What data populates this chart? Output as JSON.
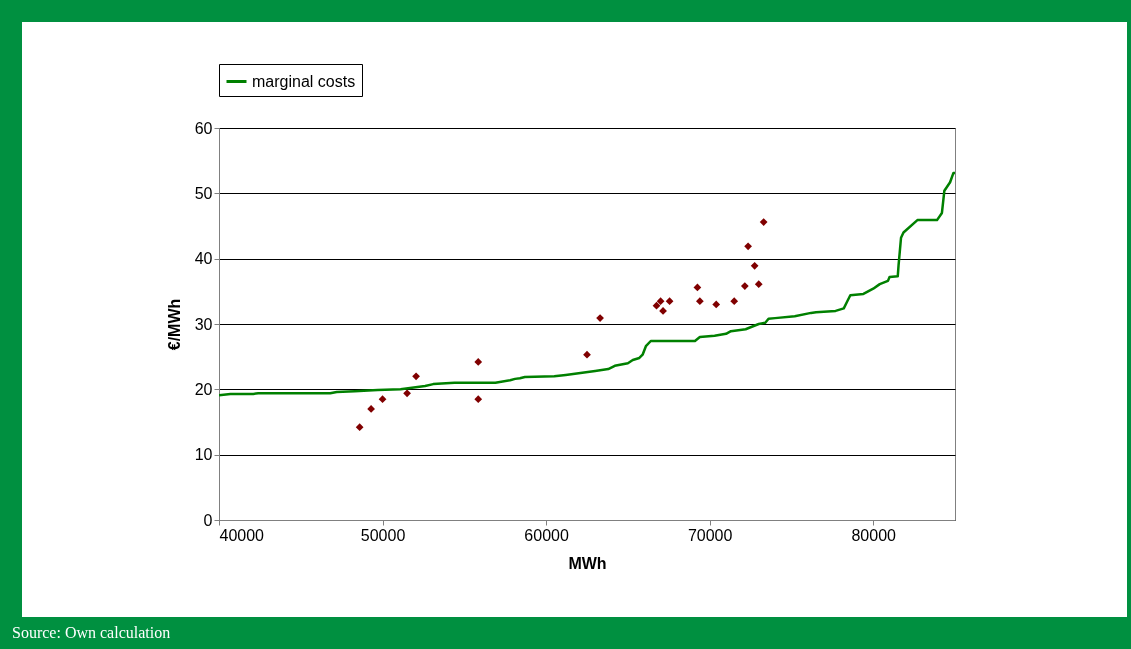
{
  "chart_data": {
    "type": "scatter",
    "xlabel": "MWh",
    "ylabel": "€/MWh",
    "xlim": [
      40000,
      85000
    ],
    "xticks": [
      40000,
      50000,
      60000,
      70000,
      80000
    ],
    "ylim": [
      0,
      60
    ],
    "yticks": [
      0,
      10,
      20,
      30,
      40,
      50,
      60
    ],
    "grid": "y",
    "legend": "top",
    "annotations": [
      "Source: Own calculation"
    ],
    "series": [
      {
        "marker": "diamond",
        "color": "#800000",
        "x": [
          48600,
          49300,
          50000,
          51500,
          52050,
          55850,
          55850,
          62500,
          63300,
          66750,
          67000,
          67150,
          67550,
          69250,
          69400,
          70400,
          71500,
          72150,
          72350,
          72750,
          73000,
          73300
        ],
        "values": [
          14.2,
          17.0,
          18.5,
          19.4,
          22.0,
          24.2,
          18.5,
          25.3,
          30.9,
          32.8,
          33.5,
          32.0,
          33.5,
          35.6,
          33.5,
          33.0,
          33.5,
          35.8,
          41.9,
          38.9,
          36.1,
          45.6
        ]
      },
      {
        "type": "line",
        "name": "marginal costs",
        "color": "#008000",
        "line_style": "solid",
        "marker": "none",
        "x": [
          40000,
          40700,
          42100,
          42400,
          46800,
          47200,
          48300,
          49700,
          51100,
          52600,
          53100,
          54400,
          56900,
          57800,
          58100,
          58400,
          58700,
          60500,
          61200,
          62100,
          63000,
          63800,
          64200,
          65000,
          65300,
          65700,
          65900,
          66100,
          66400,
          69100,
          69400,
          70300,
          71000,
          71300,
          72200,
          72500,
          73000,
          73400,
          73600,
          74000,
          75200,
          76200,
          76500,
          77700,
          78200,
          78400,
          78600,
          79400,
          80000,
          80400,
          80900,
          81000,
          81500,
          81550,
          81700,
          81850,
          82700,
          83900,
          84200,
          84350,
          84700,
          84900,
          85000
        ],
        "values": [
          19.1,
          19.3,
          19.3,
          19.4,
          19.4,
          19.6,
          19.7,
          19.9,
          20.0,
          20.5,
          20.8,
          21.0,
          21.0,
          21.4,
          21.6,
          21.7,
          21.9,
          22.0,
          22.2,
          22.5,
          22.8,
          23.1,
          23.6,
          24.0,
          24.5,
          24.8,
          25.3,
          26.6,
          27.4,
          27.4,
          28.0,
          28.2,
          28.5,
          28.9,
          29.2,
          29.5,
          30.0,
          30.2,
          30.8,
          30.9,
          31.2,
          31.7,
          31.8,
          32.0,
          32.4,
          33.4,
          34.4,
          34.6,
          35.4,
          36.1,
          36.6,
          37.2,
          37.3,
          39.0,
          43.2,
          44.0,
          45.9,
          45.9,
          47.0,
          50.4,
          51.7,
          53.1,
          53.1
        ]
      }
    ]
  }
}
